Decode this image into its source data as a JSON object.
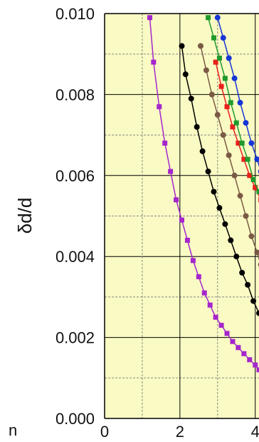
{
  "chart_data": {
    "type": "line",
    "title": "",
    "xlabel": "",
    "ylabel": "δd/d",
    "xlim": [
      0,
      4.1
    ],
    "ylim": [
      0,
      0.01
    ],
    "x_ticks": [
      "0",
      "2",
      "4"
    ],
    "y_ticks": [
      "0.000",
      "0.002",
      "0.004",
      "0.006",
      "0.008",
      "0.010"
    ],
    "grid": true,
    "legend": "none",
    "stray_text": "n",
    "colors": {
      "plot_bg": "#fafac4",
      "grid_major": "#000000",
      "grid_minor": "#888888",
      "magenta": "#a426cc",
      "black": "#000000",
      "brown": "#7a5a45",
      "red": "#e8201a",
      "green": "#1f9a2c",
      "blue": "#1736d6"
    },
    "series": [
      {
        "color": "magenta",
        "marker": "square",
        "x": [
          1.2,
          1.3,
          1.45,
          1.6,
          1.75,
          1.9,
          2.05,
          2.2,
          2.35,
          2.5,
          2.65,
          2.8,
          2.95,
          3.1,
          3.25,
          3.4,
          3.55,
          3.7,
          3.85,
          4.0,
          4.1
        ],
        "y": [
          0.0099,
          0.0088,
          0.0077,
          0.0068,
          0.0061,
          0.0054,
          0.0049,
          0.0044,
          0.0039,
          0.0035,
          0.0031,
          0.0028,
          0.0025,
          0.0023,
          0.0021,
          0.0019,
          0.00175,
          0.0016,
          0.00145,
          0.00132,
          0.0012
        ]
      },
      {
        "color": "black",
        "marker": "circle",
        "x": [
          2.05,
          2.15,
          2.3,
          2.45,
          2.6,
          2.75,
          2.9,
          3.05,
          3.2,
          3.35,
          3.5,
          3.65,
          3.8,
          3.95,
          4.1
        ],
        "y": [
          0.0092,
          0.0085,
          0.0079,
          0.0072,
          0.0066,
          0.0061,
          0.0056,
          0.0052,
          0.0048,
          0.0044,
          0.004,
          0.0036,
          0.0033,
          0.0029,
          0.0026
        ]
      },
      {
        "color": "brown",
        "marker": "circle",
        "x": [
          2.55,
          2.7,
          2.85,
          3.0,
          3.15,
          3.3,
          3.45,
          3.6,
          3.75,
          3.9,
          4.05,
          4.15
        ],
        "y": [
          0.0092,
          0.0086,
          0.008,
          0.0075,
          0.007,
          0.0065,
          0.006,
          0.0055,
          0.005,
          0.0045,
          0.0041,
          0.0038
        ]
      },
      {
        "color": "red",
        "marker": "square",
        "x": [
          2.95,
          3.1,
          3.25,
          3.4,
          3.55,
          3.7,
          3.85,
          4.0,
          4.15
        ],
        "y": [
          0.0088,
          0.0082,
          0.0077,
          0.0072,
          0.0068,
          0.0064,
          0.006,
          0.0057,
          0.0054
        ]
      },
      {
        "color": "green",
        "marker": "square",
        "x": [
          2.75,
          2.9,
          3.05,
          3.2,
          3.35,
          3.5,
          3.65,
          3.8,
          3.95,
          4.1
        ],
        "y": [
          0.0099,
          0.0094,
          0.0089,
          0.0084,
          0.0078,
          0.0073,
          0.0068,
          0.0064,
          0.0059,
          0.0056
        ]
      },
      {
        "color": "blue",
        "marker": "circle",
        "x": [
          3.0,
          3.15,
          3.3,
          3.45,
          3.6,
          3.75,
          3.9,
          4.05,
          4.15
        ],
        "y": [
          0.0099,
          0.0094,
          0.0089,
          0.0084,
          0.0078,
          0.0073,
          0.0068,
          0.0064,
          0.0061
        ]
      }
    ]
  }
}
